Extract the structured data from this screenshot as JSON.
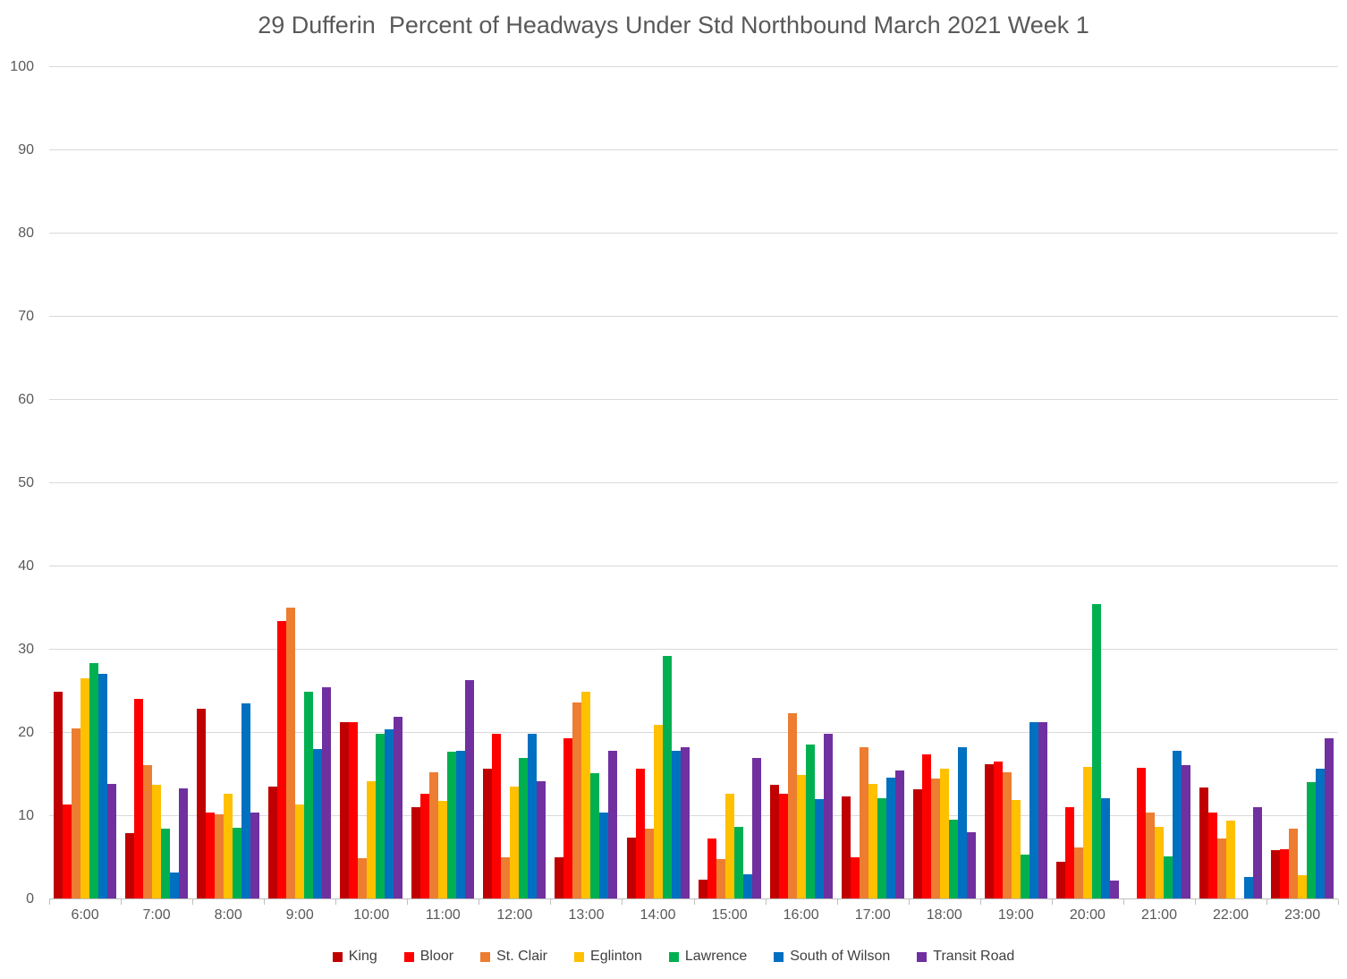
{
  "colors": {
    "title_text": "#595959",
    "axis_text": "#595959",
    "legend_text": "#404040",
    "gridline": "#D9D9D9",
    "axis_line": "#BFBFBF",
    "background": "#FFFFFF"
  },
  "chart_data": {
    "type": "bar",
    "title": "29 Dufferin  Percent of Headways Under Std Northbound March 2021 Week 1",
    "xlabel": "",
    "ylabel": "",
    "ylim": [
      0,
      100
    ],
    "ytick_step": 10,
    "grid": true,
    "legend_position": "bottom",
    "categories": [
      "6:00",
      "7:00",
      "8:00",
      "9:00",
      "10:00",
      "11:00",
      "12:00",
      "13:00",
      "14:00",
      "15:00",
      "16:00",
      "17:00",
      "18:00",
      "19:00",
      "20:00",
      "21:00",
      "22:00",
      "23:00"
    ],
    "series": [
      {
        "name": "King",
        "color": "#C00000",
        "values": [
          25.0,
          8.0,
          22.9,
          13.5,
          21.3,
          11.1,
          15.7,
          5.1,
          7.4,
          2.4,
          13.8,
          12.4,
          13.2,
          16.2,
          4.5,
          0,
          13.4,
          5.9
        ]
      },
      {
        "name": "Bloor",
        "color": "#FF0000",
        "values": [
          11.4,
          24.1,
          10.4,
          33.4,
          21.3,
          12.7,
          19.9,
          19.4,
          15.7,
          7.3,
          12.7,
          5.1,
          17.4,
          16.6,
          11.1,
          15.8,
          10.4,
          6.0
        ]
      },
      {
        "name": "St. Clair",
        "color": "#ED7D31",
        "values": [
          20.5,
          16.1,
          10.2,
          35.1,
          5.0,
          15.3,
          5.1,
          23.7,
          8.5,
          4.8,
          22.4,
          18.3,
          14.5,
          15.3,
          6.2,
          10.4,
          7.3,
          8.5
        ]
      },
      {
        "name": "Eglinton",
        "color": "#FFC000",
        "values": [
          26.6,
          13.8,
          12.7,
          11.4,
          14.2,
          11.8,
          13.5,
          24.9,
          21.0,
          12.7,
          15.0,
          13.9,
          15.7,
          11.9,
          15.9,
          8.7,
          9.5,
          2.9
        ]
      },
      {
        "name": "Lawrence",
        "color": "#00B050",
        "values": [
          28.4,
          8.5,
          8.6,
          24.9,
          19.9,
          17.7,
          17.0,
          15.2,
          29.2,
          8.7,
          18.6,
          12.2,
          9.6,
          5.4,
          35.5,
          5.2,
          0,
          14.1
        ]
      },
      {
        "name": "South of Wilson",
        "color": "#0070C0",
        "values": [
          27.1,
          3.2,
          23.6,
          18.1,
          20.4,
          17.8,
          19.9,
          10.4,
          17.8,
          3.0,
          12.0,
          14.6,
          18.3,
          21.3,
          12.2,
          17.8,
          2.7,
          15.7
        ]
      },
      {
        "name": "Transit Road",
        "color": "#7030A0",
        "values": [
          13.9,
          13.3,
          10.4,
          25.5,
          21.9,
          26.3,
          14.2,
          17.8,
          18.3,
          17.0,
          19.9,
          15.5,
          8.1,
          21.3,
          2.3,
          16.1,
          11.1,
          19.4
        ]
      }
    ]
  }
}
